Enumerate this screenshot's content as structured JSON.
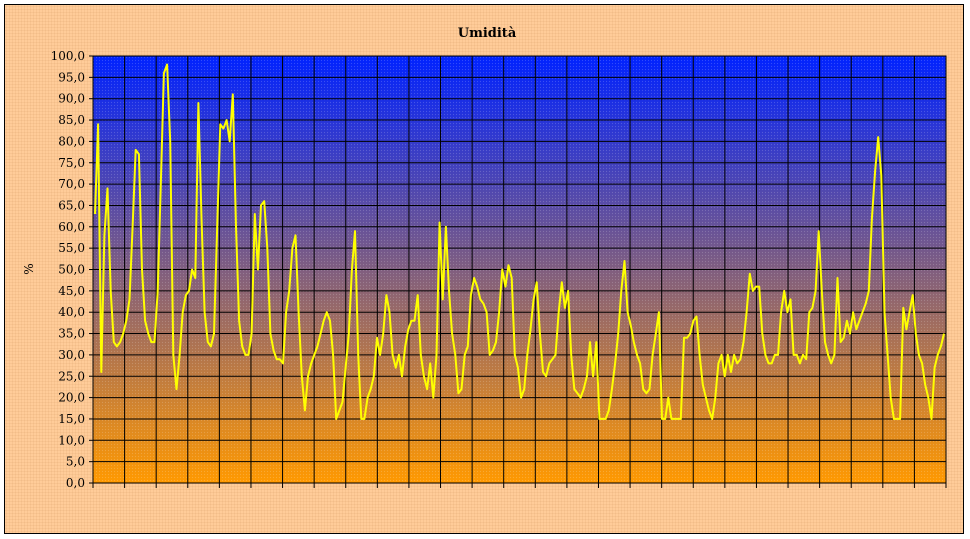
{
  "chart_data": {
    "type": "line",
    "title": "Umidità",
    "xlabel": "",
    "ylabel": "%",
    "ylim": [
      0,
      100
    ],
    "yticks": [
      "0,0",
      "5,0",
      "10,0",
      "15,0",
      "20,0",
      "25,0",
      "30,0",
      "35,0",
      "40,0",
      "45,0",
      "50,0",
      "55,0",
      "60,0",
      "65,0",
      "70,0",
      "75,0",
      "80,0",
      "85,0",
      "90,0",
      "95,0",
      "100,0"
    ],
    "grid": true,
    "legend": "none",
    "plot_gradient": [
      "#0022ff",
      "#ff9900"
    ],
    "series": [
      {
        "color": "#ffff00",
        "values": [
          63,
          84,
          26,
          58,
          69,
          45,
          33,
          32,
          33,
          35,
          38,
          43,
          60,
          78,
          77,
          50,
          38,
          35,
          33,
          33,
          45,
          70,
          96,
          98,
          80,
          30,
          22,
          30,
          40,
          44,
          45,
          50,
          48,
          89,
          62,
          40,
          33,
          32,
          35,
          60,
          84,
          83,
          85,
          80,
          91,
          60,
          38,
          32,
          30,
          30,
          35,
          63,
          50,
          65,
          66,
          55,
          35,
          31,
          29,
          29,
          28,
          40,
          45,
          55,
          58,
          40,
          25,
          17,
          25,
          28,
          30,
          32,
          35,
          38,
          40,
          38,
          30,
          15,
          17,
          19,
          27,
          35,
          50,
          59,
          30,
          15,
          15,
          20,
          22,
          25,
          34,
          30,
          35,
          44,
          40,
          30,
          27,
          30,
          25,
          32,
          36,
          38,
          38,
          44,
          30,
          25,
          22,
          28,
          20,
          30,
          61,
          43,
          60,
          45,
          35,
          30,
          21,
          22,
          30,
          32,
          44,
          48,
          46,
          43,
          42,
          40,
          30,
          31,
          33,
          40,
          50,
          46,
          51,
          48,
          30,
          27,
          20,
          22,
          30,
          36,
          43,
          47,
          35,
          26,
          25,
          28,
          29,
          30,
          40,
          47,
          41,
          45,
          30,
          22,
          21,
          20,
          22,
          25,
          33,
          25,
          33,
          15,
          15,
          15,
          17,
          22,
          28,
          35,
          45,
          52,
          40,
          37,
          33,
          30,
          28,
          22,
          21,
          22,
          30,
          35,
          40,
          15,
          15,
          20,
          15,
          15,
          15,
          15,
          34,
          34,
          35,
          38,
          39,
          30,
          23,
          20,
          17,
          15,
          20,
          28,
          30,
          25,
          30,
          26,
          30,
          28,
          29,
          33,
          40,
          49,
          45,
          46,
          46,
          35,
          30,
          28,
          28,
          30,
          30,
          40,
          45,
          40,
          43,
          30,
          30,
          28,
          30,
          29,
          40,
          41,
          45,
          59,
          45,
          33,
          30,
          28,
          30,
          48,
          33,
          34,
          38,
          35,
          40,
          36,
          38,
          40,
          42,
          45,
          62,
          73,
          81,
          72,
          40,
          30,
          20,
          15,
          15,
          15,
          41,
          36,
          40,
          44,
          35,
          30,
          28,
          23,
          20,
          15,
          27,
          30,
          32,
          35
        ]
      }
    ]
  }
}
